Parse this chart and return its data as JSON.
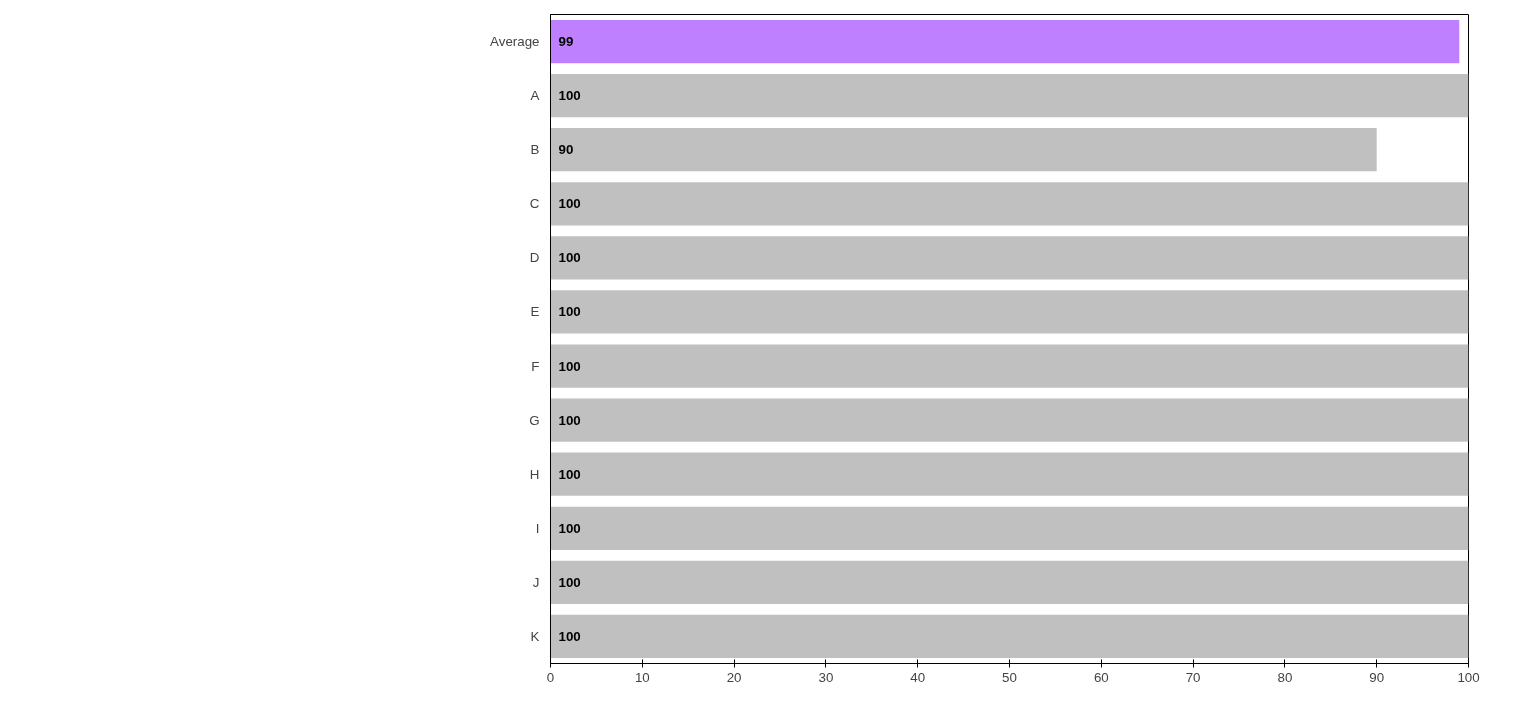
{
  "chart_data": {
    "type": "bar",
    "orientation": "horizontal",
    "categories": [
      "Average",
      "A",
      "B",
      "C",
      "D",
      "E",
      "F",
      "G",
      "H",
      "I",
      "J",
      "K"
    ],
    "values": [
      99,
      100,
      90,
      100,
      100,
      100,
      100,
      100,
      100,
      100,
      100,
      100
    ],
    "colors": [
      "#bf80ff",
      "#c0c0c0",
      "#c0c0c0",
      "#c0c0c0",
      "#c0c0c0",
      "#c0c0c0",
      "#c0c0c0",
      "#c0c0c0",
      "#c0c0c0",
      "#c0c0c0",
      "#c0c0c0",
      "#c0c0c0"
    ],
    "xlim": [
      0,
      100
    ],
    "xticks": [
      0,
      10,
      20,
      30,
      40,
      50,
      60,
      70,
      80,
      90,
      100
    ],
    "data_labels": true,
    "grid": false
  }
}
